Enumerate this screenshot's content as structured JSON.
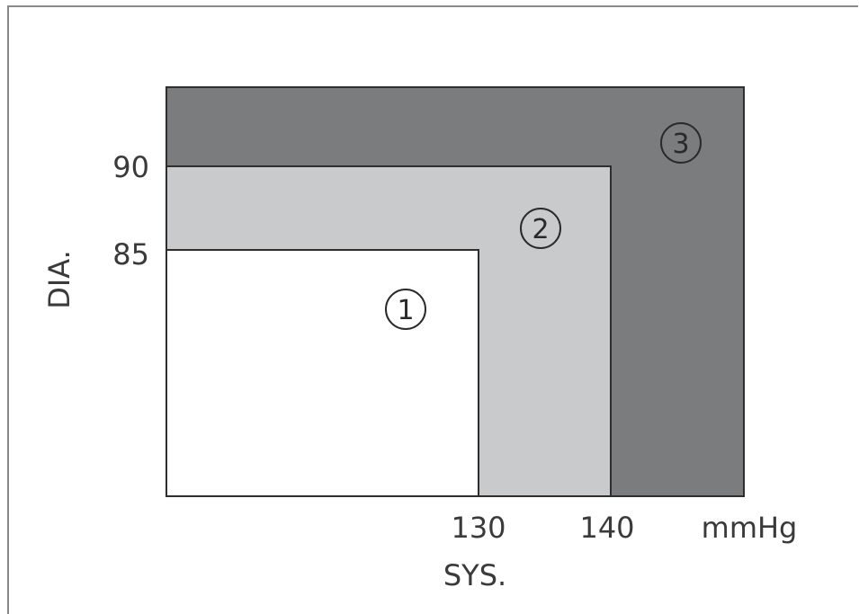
{
  "diagram": {
    "y_axis_label": "DIA.",
    "x_axis_label": "SYS.",
    "unit": "mmHg",
    "y_ticks": [
      "90",
      "85"
    ],
    "x_ticks": [
      "130",
      "140"
    ],
    "zones": [
      {
        "number": "1",
        "systolic_max": 130,
        "diastolic_max": 85,
        "color": "#ffffff"
      },
      {
        "number": "2",
        "systolic_max": 140,
        "diastolic_max": 90,
        "color": "#c9cacb"
      },
      {
        "number": "3",
        "color": "#7b7c7e"
      }
    ]
  }
}
